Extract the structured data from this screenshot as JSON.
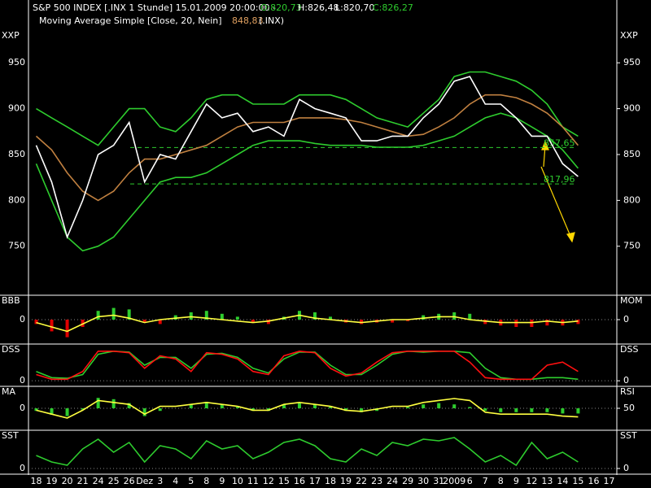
{
  "chart_data": [
    {
      "type": "line",
      "title": "S&P 500 INDEX [.INX  1 Stunde] 15.01.2009 20:00:00 -",
      "header_values": [
        "O:820,73",
        "H:826,48",
        "L:820,70",
        "C:826,27"
      ],
      "subtitle": "Moving Average Simple [Close, 20, Nein]",
      "subtitle_value": "848,83",
      "subtitle_source": "(.INX)",
      "left_label": "XXP",
      "right_label": "XXP",
      "categories": [
        "18",
        "19",
        "20",
        "21",
        "24",
        "25",
        "26",
        "Dez",
        "3",
        "4",
        "5",
        "8",
        "9",
        "10",
        "11",
        "12",
        "15",
        "16",
        "17",
        "18",
        "19",
        "22",
        "23",
        "24",
        "29",
        "30",
        "31",
        "2009",
        "6",
        "7",
        "8",
        "9",
        "12",
        "13",
        "14",
        "15",
        "16",
        "17"
      ],
      "ylim": [
        701,
        983
      ],
      "yticks": [
        750,
        800,
        850,
        900,
        950
      ],
      "levels": [
        {
          "value": 857.65,
          "label": "857,65"
        },
        {
          "value": 817.96,
          "label": "817,96"
        }
      ],
      "level_color": "#2ecc2e",
      "series": [
        {
          "type": "line",
          "color": "#2ecc2e",
          "values": [
            900,
            890,
            880,
            870,
            860,
            880,
            900,
            900,
            880,
            875,
            890,
            910,
            915,
            915,
            905,
            905,
            905,
            915,
            915,
            915,
            910,
            900,
            890,
            885,
            880,
            895,
            910,
            935,
            940,
            940,
            935,
            930,
            920,
            905,
            880,
            870,
            null,
            null
          ]
        },
        {
          "type": "line",
          "color": "#2ecc2e",
          "values": [
            840,
            800,
            760,
            745,
            750,
            760,
            780,
            800,
            820,
            825,
            825,
            830,
            840,
            850,
            860,
            865,
            865,
            865,
            862,
            860,
            860,
            860,
            858,
            858,
            858,
            860,
            865,
            870,
            880,
            890,
            895,
            890,
            880,
            870,
            855,
            835,
            null,
            null
          ]
        },
        {
          "type": "line",
          "color": "#c08040",
          "values": [
            870,
            855,
            830,
            810,
            800,
            810,
            830,
            845,
            845,
            850,
            855,
            860,
            870,
            880,
            885,
            885,
            885,
            890,
            890,
            890,
            888,
            885,
            880,
            875,
            870,
            872,
            880,
            890,
            905,
            915,
            915,
            912,
            905,
            895,
            880,
            860,
            null,
            null
          ]
        },
        {
          "type": "line",
          "color": "#ffffff",
          "values": [
            860,
            820,
            760,
            800,
            850,
            860,
            885,
            820,
            850,
            845,
            875,
            905,
            890,
            895,
            875,
            880,
            870,
            910,
            900,
            895,
            890,
            865,
            865,
            870,
            870,
            890,
            905,
            930,
            935,
            905,
            905,
            890,
            870,
            870,
            840,
            826,
            null,
            null
          ]
        }
      ]
    },
    {
      "type": "line",
      "left_label": "BBB",
      "right_label": "MOM",
      "ylim": [
        -1.5,
        1.5
      ],
      "yticks": [
        0
      ],
      "series": [
        {
          "type": "histogram",
          "positive_color": "#2ecc2e",
          "negative_color": "#e00000",
          "values": [
            -0.3,
            -0.8,
            -1.2,
            -0.5,
            0.6,
            0.8,
            0.7,
            -0.2,
            -0.3,
            0.3,
            0.5,
            0.6,
            0.4,
            0.2,
            -0.2,
            -0.3,
            0.2,
            0.6,
            0.5,
            0.2,
            -0.2,
            -0.3,
            -0.2,
            -0.2,
            -0.1,
            0.3,
            0.4,
            0.5,
            0.4,
            -0.3,
            -0.4,
            -0.5,
            -0.5,
            -0.4,
            -0.4,
            -0.3,
            null,
            null
          ]
        },
        {
          "type": "line",
          "color": "#ffff40",
          "values": [
            -0.2,
            -0.5,
            -0.8,
            -0.3,
            0.2,
            0.3,
            0.1,
            -0.2,
            0,
            0.1,
            0.2,
            0.1,
            0,
            -0.1,
            -0.2,
            -0.1,
            0.1,
            0.3,
            0.1,
            0,
            -0.1,
            -0.2,
            -0.1,
            0,
            0,
            0.1,
            0.2,
            0.2,
            0,
            -0.1,
            -0.2,
            -0.2,
            -0.2,
            -0.1,
            -0.2,
            -0.1,
            null,
            null
          ]
        }
      ]
    },
    {
      "type": "line",
      "left_label": "DSS",
      "right_label": "DSS",
      "ylim": [
        -10,
        110
      ],
      "yticks": [
        0
      ],
      "series": [
        {
          "type": "line",
          "color": "#2ecc2e",
          "values": [
            30,
            10,
            8,
            20,
            85,
            95,
            92,
            50,
            75,
            75,
            40,
            85,
            88,
            75,
            40,
            25,
            70,
            92,
            92,
            50,
            20,
            20,
            50,
            85,
            95,
            92,
            95,
            95,
            90,
            40,
            10,
            5,
            5,
            10,
            10,
            5,
            null,
            null
          ]
        },
        {
          "type": "line",
          "color": "#ff1010",
          "values": [
            20,
            5,
            5,
            30,
            95,
            95,
            90,
            40,
            80,
            70,
            30,
            90,
            85,
            70,
            30,
            20,
            80,
            95,
            90,
            40,
            15,
            25,
            60,
            90,
            95,
            95,
            95,
            95,
            60,
            10,
            5,
            5,
            5,
            50,
            60,
            30,
            null,
            null
          ]
        }
      ]
    },
    {
      "type": "line",
      "left_label": "MA",
      "right_label": "RSI",
      "ylim": [
        -1.5,
        1.5
      ],
      "yticks": [
        0
      ],
      "y2lim": [
        0,
        100
      ],
      "y2ticks": [
        50
      ],
      "series": [
        {
          "type": "histogram",
          "positive_color": "#2ecc2e",
          "negative_color": "#2ecc2e",
          "values": [
            -0.2,
            -0.5,
            -0.6,
            -0.1,
            0.8,
            0.7,
            0.4,
            -0.6,
            -0.2,
            0,
            0.3,
            0.5,
            0.3,
            0.1,
            -0.2,
            -0.2,
            0.3,
            0.4,
            0.3,
            0.1,
            -0.2,
            -0.3,
            -0.2,
            0,
            0.1,
            0.3,
            0.4,
            0.3,
            0.1,
            -0.2,
            -0.3,
            -0.3,
            -0.3,
            -0.3,
            -0.4,
            -0.4,
            null,
            null
          ]
        },
        {
          "type": "line",
          "axis": "y2",
          "color": "#ffff40",
          "values": [
            45,
            35,
            25,
            45,
            70,
            65,
            60,
            35,
            55,
            55,
            60,
            65,
            60,
            55,
            45,
            45,
            60,
            65,
            60,
            55,
            45,
            42,
            48,
            55,
            55,
            65,
            70,
            75,
            70,
            40,
            35,
            35,
            35,
            35,
            30,
            28,
            null,
            null
          ]
        }
      ]
    },
    {
      "type": "line",
      "left_label": "SST",
      "right_label": "SST",
      "ylim": [
        -10,
        110
      ],
      "yticks": [
        0
      ],
      "series": [
        {
          "type": "line",
          "color": "#2ecc2e",
          "values": [
            40,
            20,
            10,
            60,
            90,
            50,
            80,
            20,
            70,
            60,
            30,
            85,
            60,
            70,
            30,
            50,
            80,
            90,
            70,
            30,
            20,
            60,
            40,
            80,
            70,
            90,
            85,
            95,
            60,
            20,
            40,
            10,
            80,
            30,
            50,
            20,
            null,
            null
          ]
        }
      ]
    }
  ]
}
